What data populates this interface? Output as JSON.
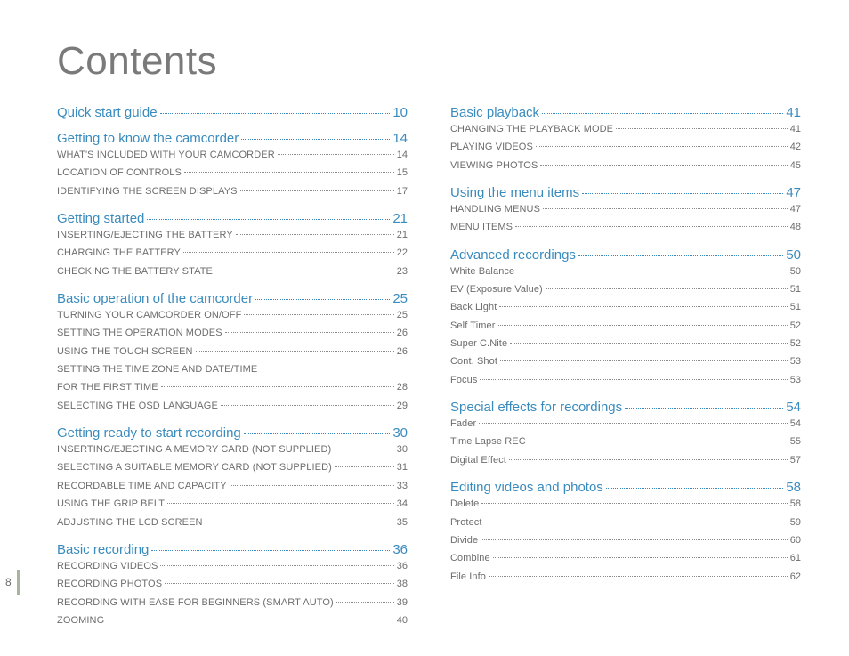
{
  "pageNumber": "8",
  "title": "Contents",
  "left": [
    {
      "type": "section",
      "label": "Quick start guide",
      "pg": "10"
    },
    {
      "type": "section",
      "label": "Getting to know the camcorder",
      "pg": "14"
    },
    {
      "type": "sub",
      "case": "upper",
      "label": "What's included with your camcorder",
      "pg": "14"
    },
    {
      "type": "sub",
      "case": "upper",
      "label": "Location of controls",
      "pg": "15"
    },
    {
      "type": "sub",
      "case": "upper",
      "label": "Identifying the screen displays",
      "pg": "17"
    },
    {
      "type": "section",
      "label": "Getting started",
      "pg": "21"
    },
    {
      "type": "sub",
      "case": "upper",
      "label": "Inserting/ejecting the battery",
      "pg": "21"
    },
    {
      "type": "sub",
      "case": "upper",
      "label": "Charging the battery",
      "pg": "22"
    },
    {
      "type": "sub",
      "case": "upper",
      "label": "Checking the battery state",
      "pg": "23"
    },
    {
      "type": "section",
      "label": "Basic operation of the camcorder",
      "pg": "25"
    },
    {
      "type": "sub",
      "case": "upper",
      "label": "Turning your camcorder on/off",
      "pg": "25"
    },
    {
      "type": "sub",
      "case": "upper",
      "label": "Setting the operation modes",
      "pg": "26"
    },
    {
      "type": "sub",
      "case": "upper",
      "label": "Using the touch screen",
      "pg": "26"
    },
    {
      "type": "sub",
      "case": "upper",
      "label": "Setting the time zone and date/time for the first time",
      "pg": "28",
      "wrap": true
    },
    {
      "type": "sub",
      "case": "upper",
      "label": "Selecting the OSD language",
      "pg": "29"
    },
    {
      "type": "section",
      "label": "Getting ready to start recording",
      "pg": "30"
    },
    {
      "type": "sub",
      "case": "upper",
      "label": "Inserting/ejecting a memory card (not supplied)",
      "pg": "30"
    },
    {
      "type": "sub",
      "case": "upper",
      "label": "Selecting a suitable memory card (not supplied)",
      "pg": "31"
    },
    {
      "type": "sub",
      "case": "upper",
      "label": "Recordable time and capacity",
      "pg": "33"
    },
    {
      "type": "sub",
      "case": "upper",
      "label": "Using the grip belt",
      "pg": "34"
    },
    {
      "type": "sub",
      "case": "upper",
      "label": "Adjusting the LCD screen",
      "pg": "35"
    },
    {
      "type": "section",
      "label": "Basic recording",
      "pg": "36"
    },
    {
      "type": "sub",
      "case": "upper",
      "label": "Recording videos",
      "pg": "36"
    },
    {
      "type": "sub",
      "case": "upper",
      "label": "Recording photos",
      "pg": "38"
    },
    {
      "type": "sub",
      "case": "upper",
      "label": "Recording with ease for beginners (Smart Auto)",
      "pg": "39"
    },
    {
      "type": "sub",
      "case": "upper",
      "label": "Zooming",
      "pg": "40"
    }
  ],
  "right": [
    {
      "type": "section",
      "label": "Basic playback",
      "pg": "41"
    },
    {
      "type": "sub",
      "case": "upper",
      "label": "Changing the playback mode",
      "pg": "41"
    },
    {
      "type": "sub",
      "case": "upper",
      "label": "Playing videos",
      "pg": "42"
    },
    {
      "type": "sub",
      "case": "upper",
      "label": "Viewing photos",
      "pg": "45"
    },
    {
      "type": "section",
      "label": "Using the menu items",
      "pg": "47"
    },
    {
      "type": "sub",
      "case": "upper",
      "label": "Handling menus",
      "pg": "47"
    },
    {
      "type": "sub",
      "case": "upper",
      "label": "Menu items",
      "pg": "48"
    },
    {
      "type": "section",
      "label": "Advanced recordings",
      "pg": "50"
    },
    {
      "type": "sub",
      "case": "lower",
      "label": "White Balance",
      "pg": "50"
    },
    {
      "type": "sub",
      "case": "lower",
      "label": "EV (Exposure Value)",
      "pg": "51"
    },
    {
      "type": "sub",
      "case": "lower",
      "label": "Back Light",
      "pg": "51"
    },
    {
      "type": "sub",
      "case": "lower",
      "label": "Self Timer",
      "pg": "52"
    },
    {
      "type": "sub",
      "case": "lower",
      "label": "Super C.Nite",
      "pg": "52"
    },
    {
      "type": "sub",
      "case": "lower",
      "label": "Cont. Shot",
      "pg": "53"
    },
    {
      "type": "sub",
      "case": "lower",
      "label": "Focus",
      "pg": "53"
    },
    {
      "type": "section",
      "label": "Special effects for recordings",
      "pg": "54"
    },
    {
      "type": "sub",
      "case": "lower",
      "label": "Fader",
      "pg": "54"
    },
    {
      "type": "sub",
      "case": "lower",
      "label": "Time Lapse REC",
      "pg": "55"
    },
    {
      "type": "sub",
      "case": "lower",
      "label": "Digital Effect",
      "pg": "57"
    },
    {
      "type": "section",
      "label": "Editing videos and photos",
      "pg": "58"
    },
    {
      "type": "sub",
      "case": "lower",
      "label": "Delete",
      "pg": "58"
    },
    {
      "type": "sub",
      "case": "lower",
      "label": "Protect",
      "pg": "59"
    },
    {
      "type": "sub",
      "case": "lower",
      "label": "Divide",
      "pg": "60"
    },
    {
      "type": "sub",
      "case": "lower",
      "label": "Combine",
      "pg": "61"
    },
    {
      "type": "sub",
      "case": "lower",
      "label": "File Info",
      "pg": "62"
    }
  ]
}
